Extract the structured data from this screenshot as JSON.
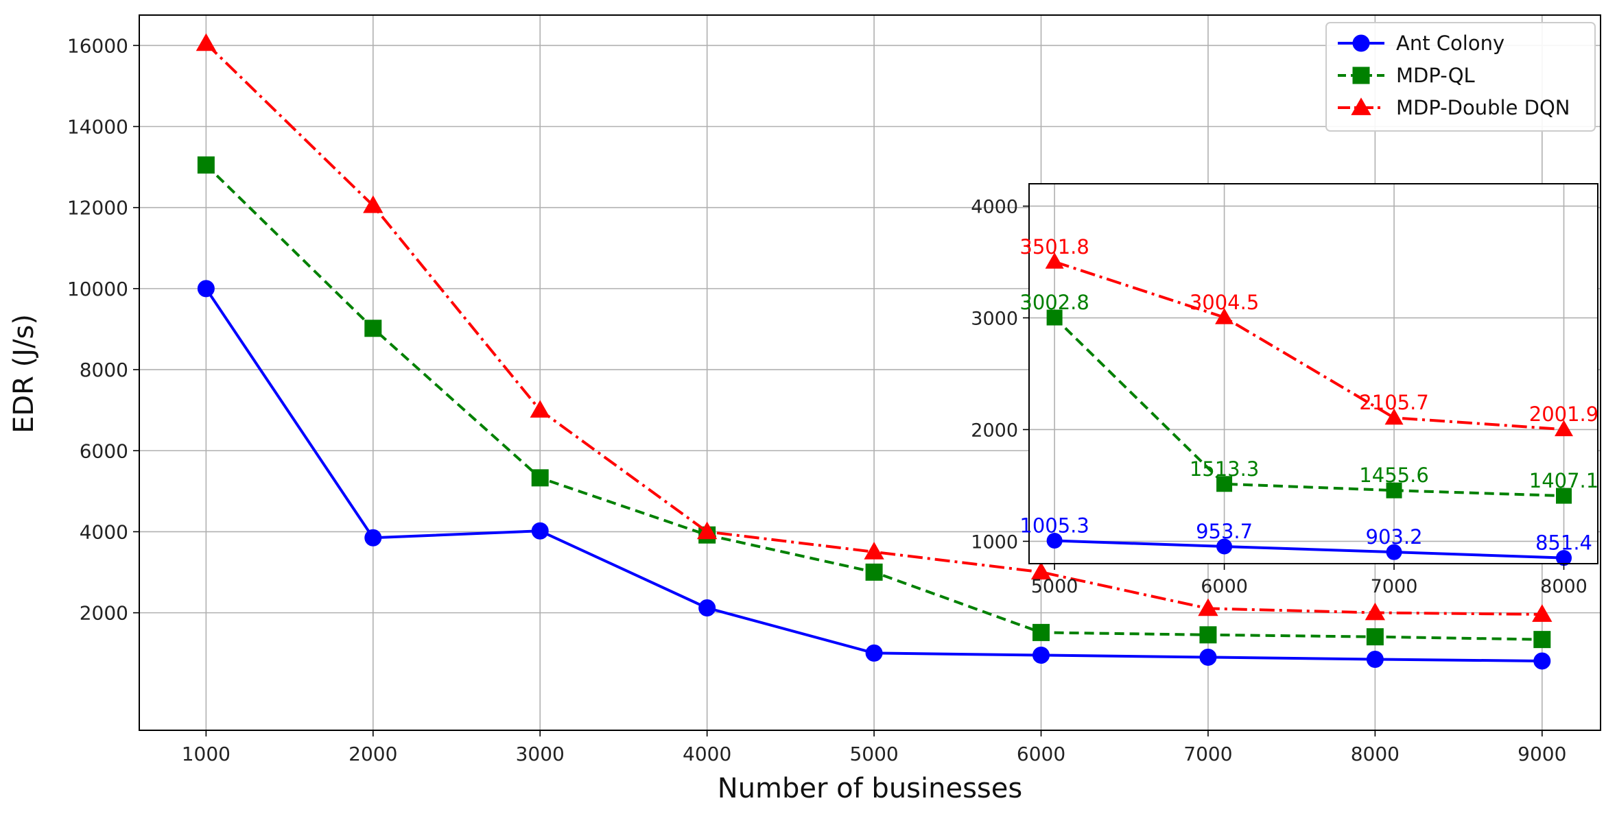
{
  "chart_data": [
    {
      "type": "line",
      "xlabel": "Number of businesses",
      "ylabel": "EDR (J/s)",
      "x": [
        1000,
        2000,
        3000,
        4000,
        5000,
        6000,
        7000,
        8000,
        9000
      ],
      "xticks": [
        "1000",
        "2000",
        "3000",
        "4000",
        "5000",
        "6000",
        "7000",
        "8000",
        "9000"
      ],
      "xlim": [
        600,
        9350
      ],
      "ylim": [
        -900,
        16750
      ],
      "yticks": [
        "2000",
        "4000",
        "6000",
        "8000",
        "10000",
        "12000",
        "14000",
        "16000"
      ],
      "grid": true,
      "legend_position": "top-right",
      "series": [
        {
          "name": "Ant Colony",
          "color": "#0000ff",
          "marker": "circle",
          "linestyle": "solid",
          "values": [
            10000,
            3850,
            4020,
            2120,
            1005.3,
            953.7,
            903.2,
            851.4,
            810
          ]
        },
        {
          "name": "MDP-QL",
          "color": "#008000",
          "marker": "square",
          "linestyle": "dashed",
          "values": [
            13050,
            9020,
            5330,
            3920,
            3002.8,
            1513.3,
            1455.6,
            1407.1,
            1340
          ]
        },
        {
          "name": "MDP-Double DQN",
          "color": "#ff0000",
          "marker": "triangle",
          "linestyle": "dashdot",
          "values": [
            16050,
            12050,
            7000,
            4000,
            3501.8,
            3004.5,
            2105.7,
            2001.9,
            1960
          ]
        }
      ]
    },
    {
      "type": "line",
      "x": [
        5000,
        6000,
        7000,
        8000
      ],
      "xticks": [
        "5000",
        "6000",
        "7000",
        "8000"
      ],
      "xlim": [
        4850,
        8200
      ],
      "ylim": [
        800,
        4200
      ],
      "yticks": [
        "1000",
        "2000",
        "3000",
        "4000"
      ],
      "grid": true,
      "series": [
        {
          "color": "#0000ff",
          "marker": "circle",
          "linestyle": "solid",
          "values": [
            1005.3,
            953.7,
            903.2,
            851.4
          ],
          "labels": [
            "1005.3",
            "953.7",
            "903.2",
            "851.4"
          ]
        },
        {
          "color": "#008000",
          "marker": "square",
          "linestyle": "dashed",
          "values": [
            3002.8,
            1513.3,
            1455.6,
            1407.1
          ],
          "labels": [
            "3002.8",
            "1513.3",
            "1455.6",
            "1407.1"
          ]
        },
        {
          "color": "#ff0000",
          "marker": "triangle",
          "linestyle": "dashdot",
          "values": [
            3501.8,
            3004.5,
            2105.7,
            2001.9
          ],
          "labels": [
            "3501.8",
            "3004.5",
            "2105.7",
            "2001.9"
          ]
        }
      ]
    }
  ]
}
